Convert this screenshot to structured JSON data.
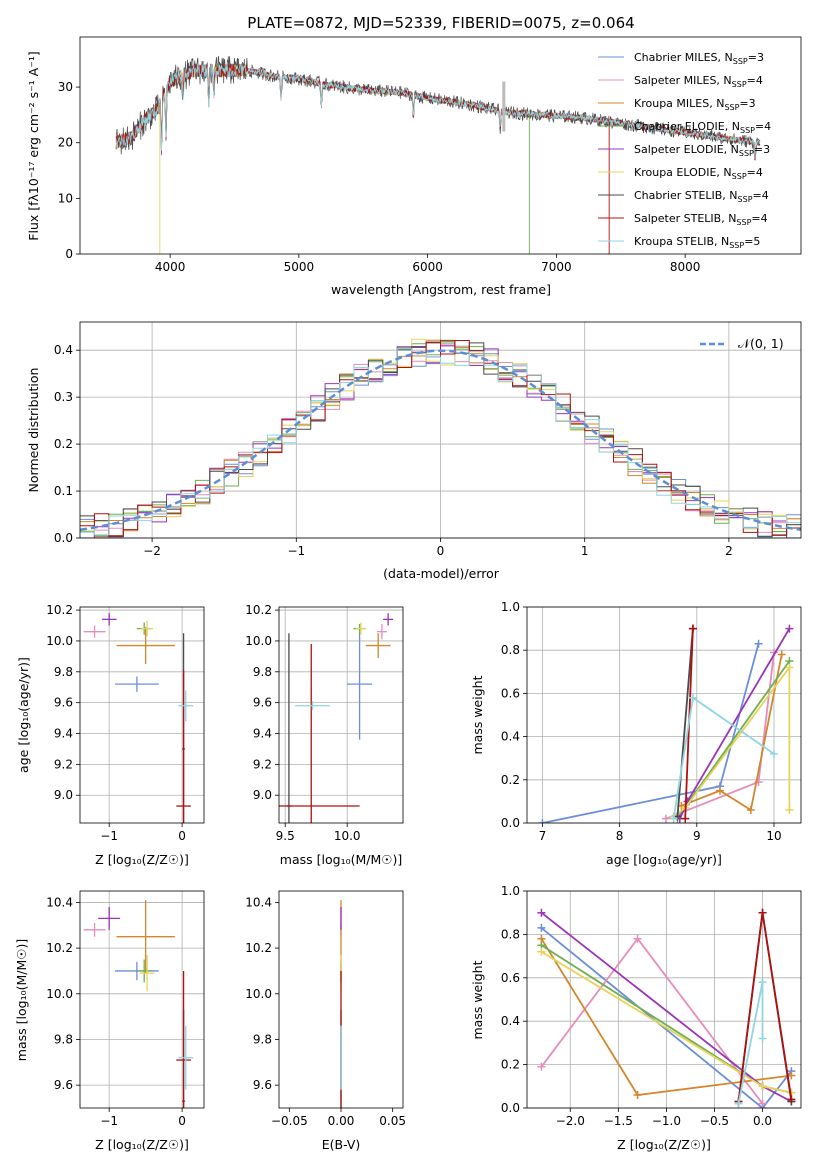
{
  "colors": {
    "Chabrier MILES": "#6a8fd8",
    "Salpeter MILES": "#e68cbd",
    "Kroupa MILES": "#d4862a",
    "Chabrier ELODIE": "#6fae52",
    "Salpeter ELODIE": "#9b34b8",
    "Kroupa ELODIE": "#e6d35a",
    "Chabrier STELIB": "#4a4a4a",
    "Salpeter STELIB": "#b01010",
    "Kroupa STELIB": "#8fd6e0"
  },
  "chart_data": [
    {
      "id": "spectrum",
      "type": "line",
      "title": "PLATE=0872, MJD=52339, FIBERID=0075, z=0.064",
      "xlabel": "wavelength [Angstrom, rest frame]",
      "ylabel": "Flux [fλ10⁻¹⁷ erg cm⁻² s⁻¹ A⁻¹]",
      "xlim": [
        3300,
        8900
      ],
      "ylim": [
        0,
        39
      ],
      "xticks": [
        "4000",
        "5000",
        "6000",
        "7000",
        "8000"
      ],
      "yticks": [
        "0",
        "10",
        "20",
        "30"
      ],
      "legend_position": "top-right",
      "legend": [
        {
          "model": "Chabrier MILES",
          "label": "Chabrier MILES, N",
          "n": "3"
        },
        {
          "model": "Salpeter MILES",
          "label": "Salpeter MILES, N",
          "n": "4"
        },
        {
          "model": "Kroupa MILES",
          "label": "Kroupa MILES, N",
          "n": "3"
        },
        {
          "model": "Chabrier ELODIE",
          "label": "Chabrier ELODIE, N",
          "n": "4"
        },
        {
          "model": "Salpeter ELODIE",
          "label": "Salpeter ELODIE, N",
          "n": "3"
        },
        {
          "model": "Kroupa ELODIE",
          "label": "Kroupa ELODIE, N",
          "n": "4"
        },
        {
          "model": "Chabrier STELIB",
          "label": "Chabrier STELIB, N",
          "n": "4"
        },
        {
          "model": "Salpeter STELIB",
          "label": "Salpeter STELIB, N",
          "n": "4"
        },
        {
          "model": "Kroupa STELIB",
          "label": "Kroupa STELIB, N",
          "n": "5"
        }
      ],
      "legend_subscript": "SSP",
      "continuum": [
        [
          3580,
          20
        ],
        [
          3700,
          21
        ],
        [
          3800,
          24
        ],
        [
          3900,
          26
        ],
        [
          4000,
          31
        ],
        [
          4200,
          33
        ],
        [
          4400,
          33
        ],
        [
          4600,
          33
        ],
        [
          4800,
          32
        ],
        [
          5000,
          31.5
        ],
        [
          5200,
          30.5
        ],
        [
          5500,
          29.5
        ],
        [
          5800,
          29
        ],
        [
          6000,
          28
        ],
        [
          6300,
          27
        ],
        [
          6600,
          25.5
        ],
        [
          6900,
          25
        ],
        [
          7200,
          24.5
        ],
        [
          7500,
          23.5
        ],
        [
          7800,
          22.5
        ],
        [
          8100,
          21.5
        ],
        [
          8400,
          20.5
        ],
        [
          8580,
          20
        ]
      ],
      "absorption_features": [
        [
          3933,
          9
        ],
        [
          3968,
          8
        ],
        [
          4101,
          4
        ],
        [
          4300,
          6
        ],
        [
          4340,
          4
        ],
        [
          4861,
          4
        ],
        [
          5175,
          4
        ],
        [
          5890,
          4
        ],
        [
          6563,
          3
        ],
        [
          8542,
          3
        ],
        [
          8662,
          3
        ]
      ],
      "artifacts": [
        [
          3920,
          0
        ],
        [
          6790,
          0
        ],
        [
          7410,
          0
        ],
        [
          8540,
          17
        ]
      ]
    },
    {
      "id": "residuals",
      "type": "line",
      "xlabel": "(data-model)/error",
      "ylabel": "Normed distribution",
      "xlim": [
        -2.5,
        2.5
      ],
      "ylim": [
        0,
        0.46
      ],
      "xticks": [
        "−2",
        "−1",
        "0",
        "1",
        "2"
      ],
      "yticks": [
        "0.0",
        "0.1",
        "0.2",
        "0.3",
        "0.4"
      ],
      "legend": "𝒩(0, 1)",
      "gaussian": {
        "mu": 0,
        "sigma": 1
      },
      "bin_width": 0.1,
      "histogram_spread": 0.03
    },
    {
      "id": "z-age",
      "type": "scatter",
      "xlabel": "Z [log₁₀(Z/Z☉)]",
      "ylabel": "age  [log₁₀(age/yr)]",
      "xlim": [
        -1.4,
        0.3
      ],
      "ylim": [
        8.82,
        10.22
      ],
      "xticks": [
        "−1",
        "0"
      ],
      "yticks": [
        "9.0",
        "9.2",
        "9.4",
        "9.6",
        "9.8",
        "10.0",
        "10.2"
      ],
      "points": [
        {
          "model": "Chabrier MILES",
          "x": -0.62,
          "y": 9.72,
          "xerr": 0.3,
          "yerr": 0.05
        },
        {
          "model": "Salpeter MILES",
          "x": -1.2,
          "y": 10.06,
          "xerr": 0.15,
          "yerr": 0.04
        },
        {
          "model": "Kroupa MILES",
          "x": -0.5,
          "y": 9.97,
          "xerr": 0.4,
          "yerr": 0.12
        },
        {
          "model": "Chabrier ELODIE",
          "x": -0.52,
          "y": 10.08,
          "xerr": 0.1,
          "yerr": 0.04
        },
        {
          "model": "Salpeter ELODIE",
          "x": -1.0,
          "y": 10.14,
          "xerr": 0.1,
          "yerr": 0.04
        },
        {
          "model": "Kroupa ELODIE",
          "x": -0.48,
          "y": 10.08,
          "xerr": 0.08,
          "yerr": 0.05
        },
        {
          "model": "Chabrier STELIB",
          "x": 0.02,
          "y": 9.3,
          "xerr": 0.02,
          "yerr": 0.75
        },
        {
          "model": "Salpeter STELIB",
          "x": 0.02,
          "y": 8.93,
          "xerr": 0.1,
          "yerr": 0.88
        },
        {
          "model": "Kroupa STELIB",
          "x": 0.05,
          "y": 9.58,
          "xerr": 0.1,
          "yerr": 0.1
        }
      ]
    },
    {
      "id": "mass-age",
      "type": "scatter",
      "xlabel": "mass [log₁₀(M/M☉)]",
      "ylabel": "",
      "xlim": [
        9.45,
        10.45
      ],
      "ylim": [
        8.82,
        10.22
      ],
      "xticks": [
        "9.5",
        "10.0"
      ],
      "yticks": [
        "9.0",
        "9.2",
        "9.4",
        "9.6",
        "9.8",
        "10.0",
        "10.2"
      ],
      "points": [
        {
          "model": "Chabrier MILES",
          "x": 10.1,
          "y": 9.72,
          "xerr": 0.1,
          "yerr": 0.36
        },
        {
          "model": "Salpeter MILES",
          "x": 10.28,
          "y": 10.06,
          "xerr": 0.04,
          "yerr": 0.05
        },
        {
          "model": "Kroupa MILES",
          "x": 10.25,
          "y": 9.97,
          "xerr": 0.1,
          "yerr": 0.08
        },
        {
          "model": "Chabrier ELODIE",
          "x": 10.1,
          "y": 10.08,
          "xerr": 0.05,
          "yerr": 0.03
        },
        {
          "model": "Salpeter ELODIE",
          "x": 10.33,
          "y": 10.14,
          "xerr": 0.04,
          "yerr": 0.04
        },
        {
          "model": "Kroupa ELODIE",
          "x": 10.11,
          "y": 10.08,
          "xerr": 0.04,
          "yerr": 0.04
        },
        {
          "model": "Chabrier STELIB",
          "x": 9.53,
          "y": 8.93,
          "xerr": 0.02,
          "yerr": 1.12
        },
        {
          "model": "Salpeter STELIB",
          "x": 9.71,
          "y": 8.93,
          "xerr": 0.39,
          "yerr": 1.05
        },
        {
          "model": "Kroupa STELIB",
          "x": 9.72,
          "y": 9.58,
          "xerr": 0.14,
          "yerr": 0.03
        }
      ]
    },
    {
      "id": "age-weight",
      "type": "line",
      "xlabel": "age  [log₁₀(age/yr)]",
      "ylabel": "mass weight",
      "xlim": [
        6.8,
        10.35
      ],
      "ylim": [
        0,
        1.0
      ],
      "xticks": [
        "7",
        "8",
        "9",
        "10"
      ],
      "yticks": [
        "0.0",
        "0.2",
        "0.4",
        "0.6",
        "0.8",
        "1.0"
      ],
      "series": [
        {
          "model": "Chabrier MILES",
          "x": [
            7.0,
            9.3,
            9.8
          ],
          "y": [
            0.0,
            0.17,
            0.83
          ]
        },
        {
          "model": "Salpeter MILES",
          "x": [
            8.6,
            9.8,
            10.0
          ],
          "y": [
            0.02,
            0.19,
            0.79
          ]
        },
        {
          "model": "Kroupa MILES",
          "x": [
            8.8,
            9.3,
            9.7,
            10.1
          ],
          "y": [
            0.08,
            0.15,
            0.06,
            0.78
          ]
        },
        {
          "model": "Chabrier ELODIE",
          "x": [
            8.75,
            8.9,
            10.2
          ],
          "y": [
            0.02,
            0.1,
            0.75
          ]
        },
        {
          "model": "Salpeter ELODIE",
          "x": [
            8.78,
            8.88,
            10.2
          ],
          "y": [
            0.02,
            0.1,
            0.9
          ]
        },
        {
          "model": "Kroupa ELODIE",
          "x": [
            8.7,
            8.85,
            10.2,
            10.2
          ],
          "y": [
            0.03,
            0.07,
            0.72,
            0.06
          ]
        },
        {
          "model": "Chabrier STELIB",
          "x": [
            8.75,
            8.95
          ],
          "y": [
            0.03,
            0.9
          ]
        },
        {
          "model": "Salpeter STELIB",
          "x": [
            8.85,
            8.95
          ],
          "y": [
            0.02,
            0.9
          ]
        },
        {
          "model": "Kroupa STELIB",
          "x": [
            8.7,
            8.95,
            10.0
          ],
          "y": [
            0.02,
            0.58,
            0.32
          ]
        }
      ]
    },
    {
      "id": "z-mass",
      "type": "scatter",
      "xlabel": "Z [log₁₀(Z/Z☉)]",
      "ylabel": "mass [log₁₀(M/M☉)]",
      "xlim": [
        -1.4,
        0.3
      ],
      "ylim": [
        9.5,
        10.45
      ],
      "xticks": [
        "−1",
        "0"
      ],
      "yticks": [
        "9.6",
        "9.8",
        "10.0",
        "10.2",
        "10.4"
      ],
      "points": [
        {
          "model": "Chabrier MILES",
          "x": -0.62,
          "y": 10.1,
          "xerr": 0.3,
          "yerr": 0.04
        },
        {
          "model": "Salpeter MILES",
          "x": -1.2,
          "y": 10.28,
          "xerr": 0.15,
          "yerr": 0.03
        },
        {
          "model": "Kroupa MILES",
          "x": -0.5,
          "y": 10.25,
          "xerr": 0.4,
          "yerr": 0.16
        },
        {
          "model": "Chabrier ELODIE",
          "x": -0.52,
          "y": 10.1,
          "xerr": 0.1,
          "yerr": 0.05
        },
        {
          "model": "Salpeter ELODIE",
          "x": -1.0,
          "y": 10.33,
          "xerr": 0.15,
          "yerr": 0.05
        },
        {
          "model": "Kroupa ELODIE",
          "x": -0.48,
          "y": 10.09,
          "xerr": 0.1,
          "yerr": 0.08
        },
        {
          "model": "Chabrier STELIB",
          "x": 0.02,
          "y": 9.53,
          "xerr": 0.02,
          "yerr": 0.4
        },
        {
          "model": "Salpeter STELIB",
          "x": 0.02,
          "y": 9.71,
          "xerr": 0.1,
          "yerr": 0.39
        },
        {
          "model": "Kroupa STELIB",
          "x": 0.05,
          "y": 9.72,
          "xerr": 0.1,
          "yerr": 0.14
        }
      ]
    },
    {
      "id": "ebv-mass",
      "type": "scatter",
      "xlabel": "E(B-V)",
      "ylabel": "",
      "xlim": [
        -0.06,
        0.06
      ],
      "ylim": [
        9.5,
        10.45
      ],
      "xticks": [
        "−0.05",
        "0.00",
        "0.05"
      ],
      "yticks": [
        "9.6",
        "9.8",
        "10.0",
        "10.2",
        "10.4"
      ],
      "points": [
        {
          "model": "Chabrier MILES",
          "x": 0.0,
          "y": 10.1,
          "xerr": 0,
          "yerr": 0.04
        },
        {
          "model": "Salpeter MILES",
          "x": 0.0,
          "y": 10.28,
          "xerr": 0,
          "yerr": 0.03
        },
        {
          "model": "Kroupa MILES",
          "x": 0.0,
          "y": 10.25,
          "xerr": 0,
          "yerr": 0.16
        },
        {
          "model": "Chabrier ELODIE",
          "x": 0.0,
          "y": 10.1,
          "xerr": 0,
          "yerr": 0.05
        },
        {
          "model": "Salpeter ELODIE",
          "x": 0.0,
          "y": 10.33,
          "xerr": 0,
          "yerr": 0.05
        },
        {
          "model": "Kroupa ELODIE",
          "x": 0.0,
          "y": 10.09,
          "xerr": 0,
          "yerr": 0.08
        },
        {
          "model": "Chabrier STELIB",
          "x": 0.0,
          "y": 9.53,
          "xerr": 0,
          "yerr": 0.4
        },
        {
          "model": "Salpeter STELIB",
          "x": 0.0,
          "y": 9.71,
          "xerr": 0,
          "yerr": 0.39
        },
        {
          "model": "Kroupa STELIB",
          "x": 0.0,
          "y": 9.72,
          "xerr": 0,
          "yerr": 0.14
        }
      ]
    },
    {
      "id": "z-weight",
      "type": "line",
      "xlabel": "Z [log₁₀(Z/Z☉)]",
      "ylabel": "mass weight",
      "xlim": [
        -2.45,
        0.4
      ],
      "ylim": [
        0,
        1.0
      ],
      "xticks": [
        "−2.0",
        "−1.5",
        "−1.0",
        "−0.5",
        "0.0"
      ],
      "yticks": [
        "0.0",
        "0.2",
        "0.4",
        "0.6",
        "0.8",
        "1.0"
      ],
      "series": [
        {
          "model": "Chabrier MILES",
          "x": [
            -2.3,
            0.0,
            0.3
          ],
          "y": [
            0.83,
            0.0,
            0.17
          ]
        },
        {
          "model": "Salpeter MILES",
          "x": [
            -2.3,
            -1.3,
            0.0
          ],
          "y": [
            0.19,
            0.78,
            0.02
          ]
        },
        {
          "model": "Kroupa MILES",
          "x": [
            -2.3,
            -1.3,
            0.3
          ],
          "y": [
            0.78,
            0.06,
            0.15
          ]
        },
        {
          "model": "Chabrier ELODIE",
          "x": [
            -2.3,
            0.0,
            0.3
          ],
          "y": [
            0.75,
            0.1,
            0.07
          ]
        },
        {
          "model": "Salpeter ELODIE",
          "x": [
            -2.3,
            0.0,
            0.3
          ],
          "y": [
            0.9,
            0.1,
            0.03
          ]
        },
        {
          "model": "Kroupa ELODIE",
          "x": [
            -2.3,
            0.0,
            0.3
          ],
          "y": [
            0.72,
            0.1,
            0.07
          ]
        },
        {
          "model": "Chabrier STELIB",
          "x": [
            -0.25,
            0.0,
            0.3
          ],
          "y": [
            0.03,
            0.9,
            0.03
          ]
        },
        {
          "model": "Salpeter STELIB",
          "x": [
            -0.25,
            0.0,
            0.3
          ],
          "y": [
            0.03,
            0.9,
            0.04
          ]
        },
        {
          "model": "Kroupa STELIB",
          "x": [
            -0.25,
            0.0,
            0.0
          ],
          "y": [
            0.02,
            0.58,
            0.32
          ]
        }
      ]
    }
  ]
}
